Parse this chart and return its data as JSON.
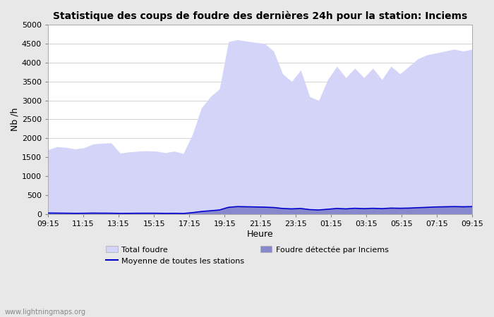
{
  "title": "Statistique des coups de foudre des dernières 24h pour la station: Inciems",
  "xlabel": "Heure",
  "ylabel": "Nb /h",
  "ylim": [
    0,
    5000
  ],
  "yticks": [
    0,
    500,
    1000,
    1500,
    2000,
    2500,
    3000,
    3500,
    4000,
    4500,
    5000
  ],
  "xtick_labels": [
    "09:15",
    "11:15",
    "13:15",
    "15:15",
    "17:15",
    "19:15",
    "21:15",
    "23:15",
    "01:15",
    "03:15",
    "05:15",
    "07:15",
    "09:15"
  ],
  "background_color": "#e8e8e8",
  "plot_bg_color": "#ffffff",
  "grid_color": "#cccccc",
  "total_foudre_color": "#d4d4f8",
  "detected_color": "#8888cc",
  "mean_line_color": "#0000cc",
  "watermark": "www.lightningmaps.org",
  "total_foudre": [
    1700,
    1780,
    1760,
    1720,
    1750,
    1850,
    1870,
    1880,
    1610,
    1640,
    1660,
    1670,
    1660,
    1620,
    1660,
    1600,
    2100,
    2800,
    3100,
    3300,
    4550,
    4600,
    4560,
    4530,
    4500,
    4300,
    3700,
    3500,
    3800,
    3100,
    3000,
    3550,
    3900,
    3600,
    3850,
    3600,
    3850,
    3550,
    3900,
    3700,
    3900,
    4100,
    4200,
    4250,
    4300,
    4350,
    4300,
    4350
  ],
  "detected_foudre": [
    30,
    28,
    25,
    22,
    24,
    28,
    26,
    25,
    20,
    22,
    24,
    25,
    24,
    20,
    22,
    18,
    40,
    70,
    90,
    110,
    180,
    200,
    195,
    190,
    185,
    175,
    150,
    140,
    150,
    120,
    110,
    130,
    150,
    140,
    155,
    145,
    155,
    145,
    160,
    155,
    160,
    170,
    180,
    190,
    195,
    200,
    195,
    200
  ],
  "mean_line": [
    30,
    28,
    25,
    22,
    24,
    28,
    26,
    25,
    20,
    22,
    24,
    25,
    24,
    20,
    22,
    18,
    40,
    70,
    90,
    110,
    180,
    200,
    195,
    190,
    185,
    175,
    150,
    140,
    150,
    120,
    110,
    130,
    150,
    140,
    155,
    145,
    155,
    145,
    160,
    155,
    160,
    170,
    180,
    190,
    195,
    200,
    195,
    200
  ]
}
